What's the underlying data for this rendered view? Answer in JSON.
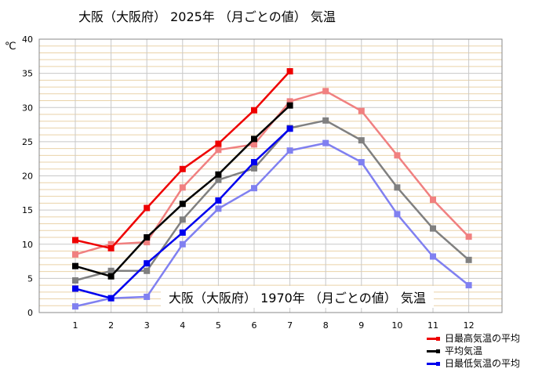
{
  "title": "大阪（大阪府） 2025年 （月ごとの値） 気温",
  "overlay_title": "大阪（大阪府） 1970年 （月ごとの値） 気温",
  "chart_data": {
    "type": "line",
    "unit": "℃",
    "categories": [
      "1",
      "2",
      "3",
      "4",
      "5",
      "6",
      "7",
      "8",
      "9",
      "10",
      "11",
      "12"
    ],
    "ylim": [
      0,
      40
    ],
    "y_ticks": [
      "0",
      "5",
      "10",
      "15",
      "20",
      "25",
      "30",
      "35",
      "40"
    ],
    "grid": true,
    "legend_position": "bottom-right",
    "series": [
      {
        "name": "日最高気温の平均",
        "year": "2025",
        "color": "#ee0000",
        "values": [
          10.6,
          9.4,
          15.3,
          21.0,
          24.7,
          29.6,
          35.3,
          null,
          null,
          null,
          null,
          null
        ]
      },
      {
        "name": "平均気温",
        "year": "2025",
        "color": "#000000",
        "values": [
          6.8,
          5.3,
          11.0,
          15.9,
          20.2,
          25.4,
          30.3,
          null,
          null,
          null,
          null,
          null
        ]
      },
      {
        "name": "日最低気温の平均",
        "year": "2025",
        "color": "#0000ee",
        "values": [
          3.5,
          2.1,
          7.2,
          11.7,
          16.4,
          22.0,
          26.9,
          null,
          null,
          null,
          null,
          null
        ]
      },
      {
        "name": "日最高気温の平均",
        "year": "1970",
        "color": "#f08080",
        "values": [
          8.5,
          10.0,
          10.3,
          18.3,
          23.8,
          24.6,
          30.9,
          32.4,
          29.5,
          23.0,
          16.5,
          11.1
        ]
      },
      {
        "name": "平均気温",
        "year": "1970",
        "color": "#808080",
        "values": [
          4.7,
          6.1,
          6.1,
          13.6,
          19.4,
          21.1,
          27.0,
          28.1,
          25.2,
          18.3,
          12.3,
          7.7
        ]
      },
      {
        "name": "日最低気温の平均",
        "year": "1970",
        "color": "#8080f0",
        "values": [
          0.9,
          2.1,
          2.3,
          10.0,
          15.2,
          18.2,
          23.7,
          24.8,
          22.0,
          14.4,
          8.2,
          4.0
        ]
      }
    ]
  },
  "legend": [
    {
      "label": "日最高気温の平均",
      "color": "#ee0000"
    },
    {
      "label": "平均気温",
      "color": "#000000"
    },
    {
      "label": "日最低気温の平均",
      "color": "#0000ee"
    }
  ]
}
